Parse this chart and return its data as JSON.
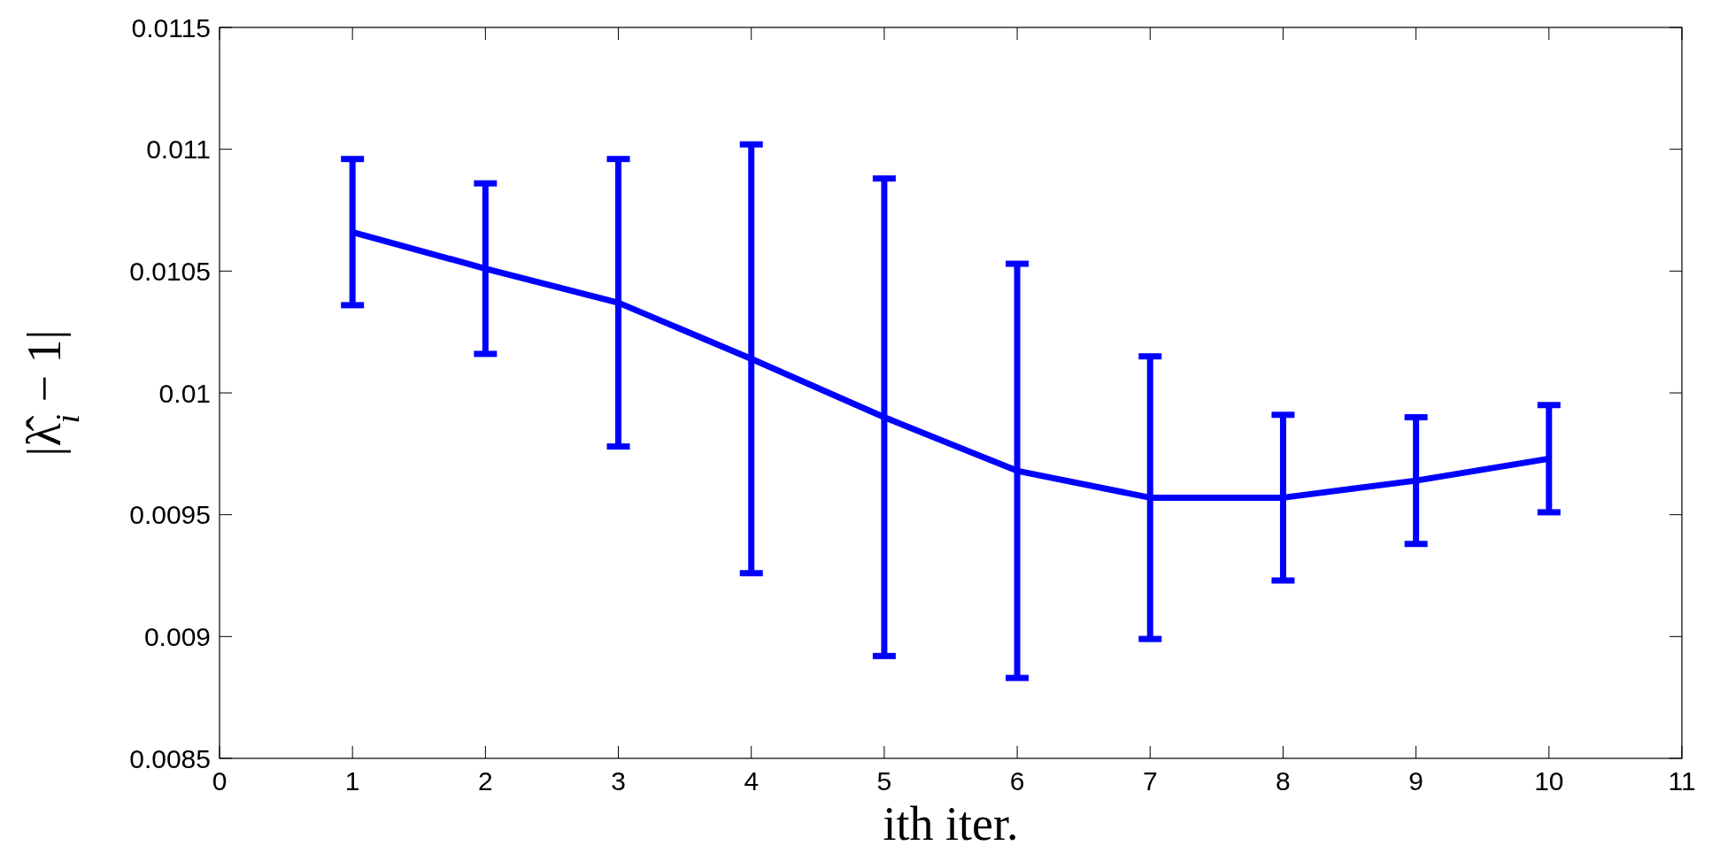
{
  "chart_data": {
    "type": "line",
    "xlabel": "ith iter.",
    "ylabel": "|λ̂$_{i}$ − 1|",
    "x": [
      1,
      2,
      3,
      4,
      5,
      6,
      7,
      8,
      9,
      10
    ],
    "series": [
      {
        "color": "#0000ff",
        "values": [
          0.01066,
          0.01051,
          0.01037,
          0.01014,
          0.0099,
          0.00968,
          0.00957,
          0.00957,
          0.00964,
          0.00973
        ],
        "errors": [
          0.0003,
          0.00035,
          0.00059,
          0.00088,
          0.00098,
          0.00085,
          0.00058,
          0.00034,
          0.00026,
          0.00022
        ]
      }
    ],
    "xlim": [
      0,
      11
    ],
    "xticks": [
      0,
      1,
      2,
      3,
      4,
      5,
      6,
      7,
      8,
      9,
      10,
      11
    ],
    "ylim": [
      0.0085,
      0.0115
    ],
    "yticks": [
      0.0085,
      0.009,
      0.0095,
      0.01,
      0.0105,
      0.011,
      0.0115
    ],
    "grid": false,
    "marker": "none",
    "line_style": "solid"
  }
}
